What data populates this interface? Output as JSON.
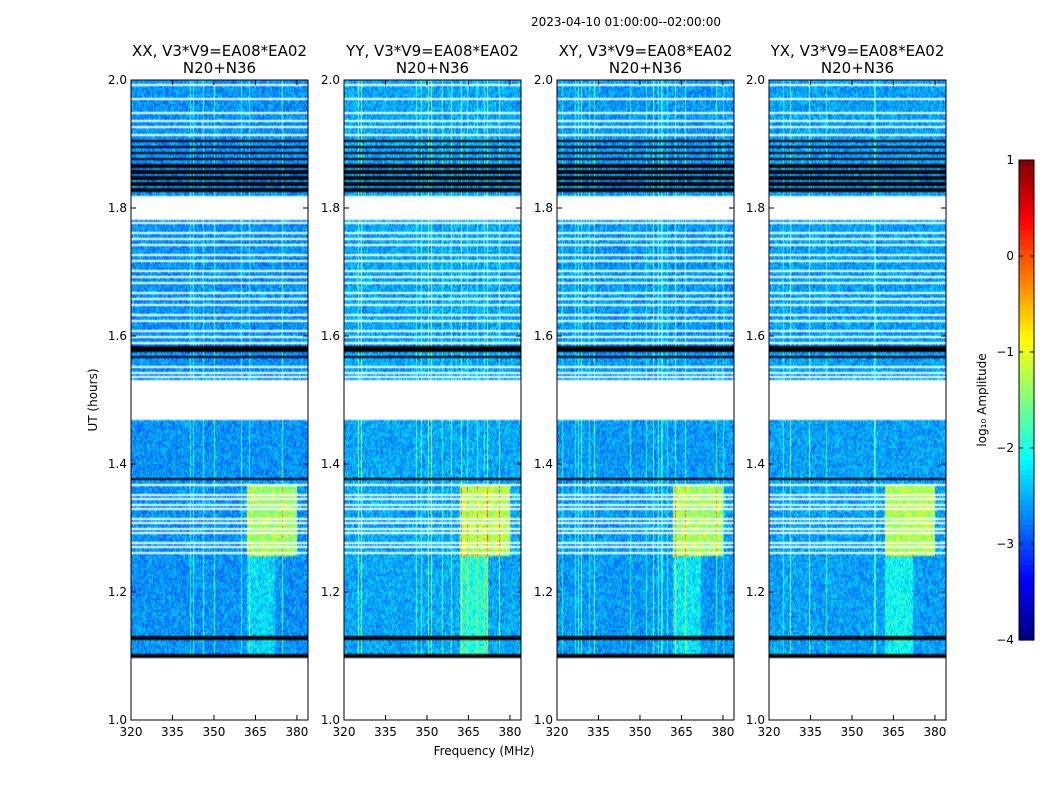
{
  "chart_data": {
    "type": "heatmap",
    "suptitle": "2023-04-10  01:00:00--02:00:00",
    "xlabel": "Frequency (MHz)",
    "ylabel": "UT (hours)",
    "xlim": [
      320,
      384
    ],
    "ylim": [
      1.0,
      2.0
    ],
    "xticks": [
      320,
      335,
      350,
      365,
      380
    ],
    "yticks": [
      1.0,
      1.2,
      1.4,
      1.6,
      1.8,
      2.0
    ],
    "ytick_labels": [
      "1.0",
      "1.2",
      "1.4",
      "1.6",
      "1.8",
      "2.0"
    ],
    "panels": [
      {
        "title": "XX, V3*V9=EA08*EA02",
        "subtitle": "N20+N36",
        "strength": 0.0
      },
      {
        "title": "YY, V3*V9=EA08*EA02",
        "subtitle": "N20+N36",
        "strength": 0.5
      },
      {
        "title": "XY, V3*V9=EA08*EA02",
        "subtitle": "N20+N36",
        "strength": 0.15
      },
      {
        "title": "YX, V3*V9=EA08*EA02",
        "subtitle": "N20+N36",
        "strength": 0.35
      }
    ],
    "data_gaps_ut": [
      [
        1.0,
        1.1
      ],
      [
        1.47,
        1.5
      ],
      [
        1.5,
        1.53
      ],
      [
        1.78,
        1.82
      ]
    ],
    "colorbar": {
      "label": "log₁₀ Amplitude",
      "range": [
        -4,
        1
      ],
      "ticks": [
        -4,
        -3,
        -2,
        -1,
        0,
        1
      ],
      "tick_labels": [
        "−4",
        "−3",
        "−2",
        "−1",
        "0",
        "1"
      ],
      "colormap": "jet"
    }
  }
}
